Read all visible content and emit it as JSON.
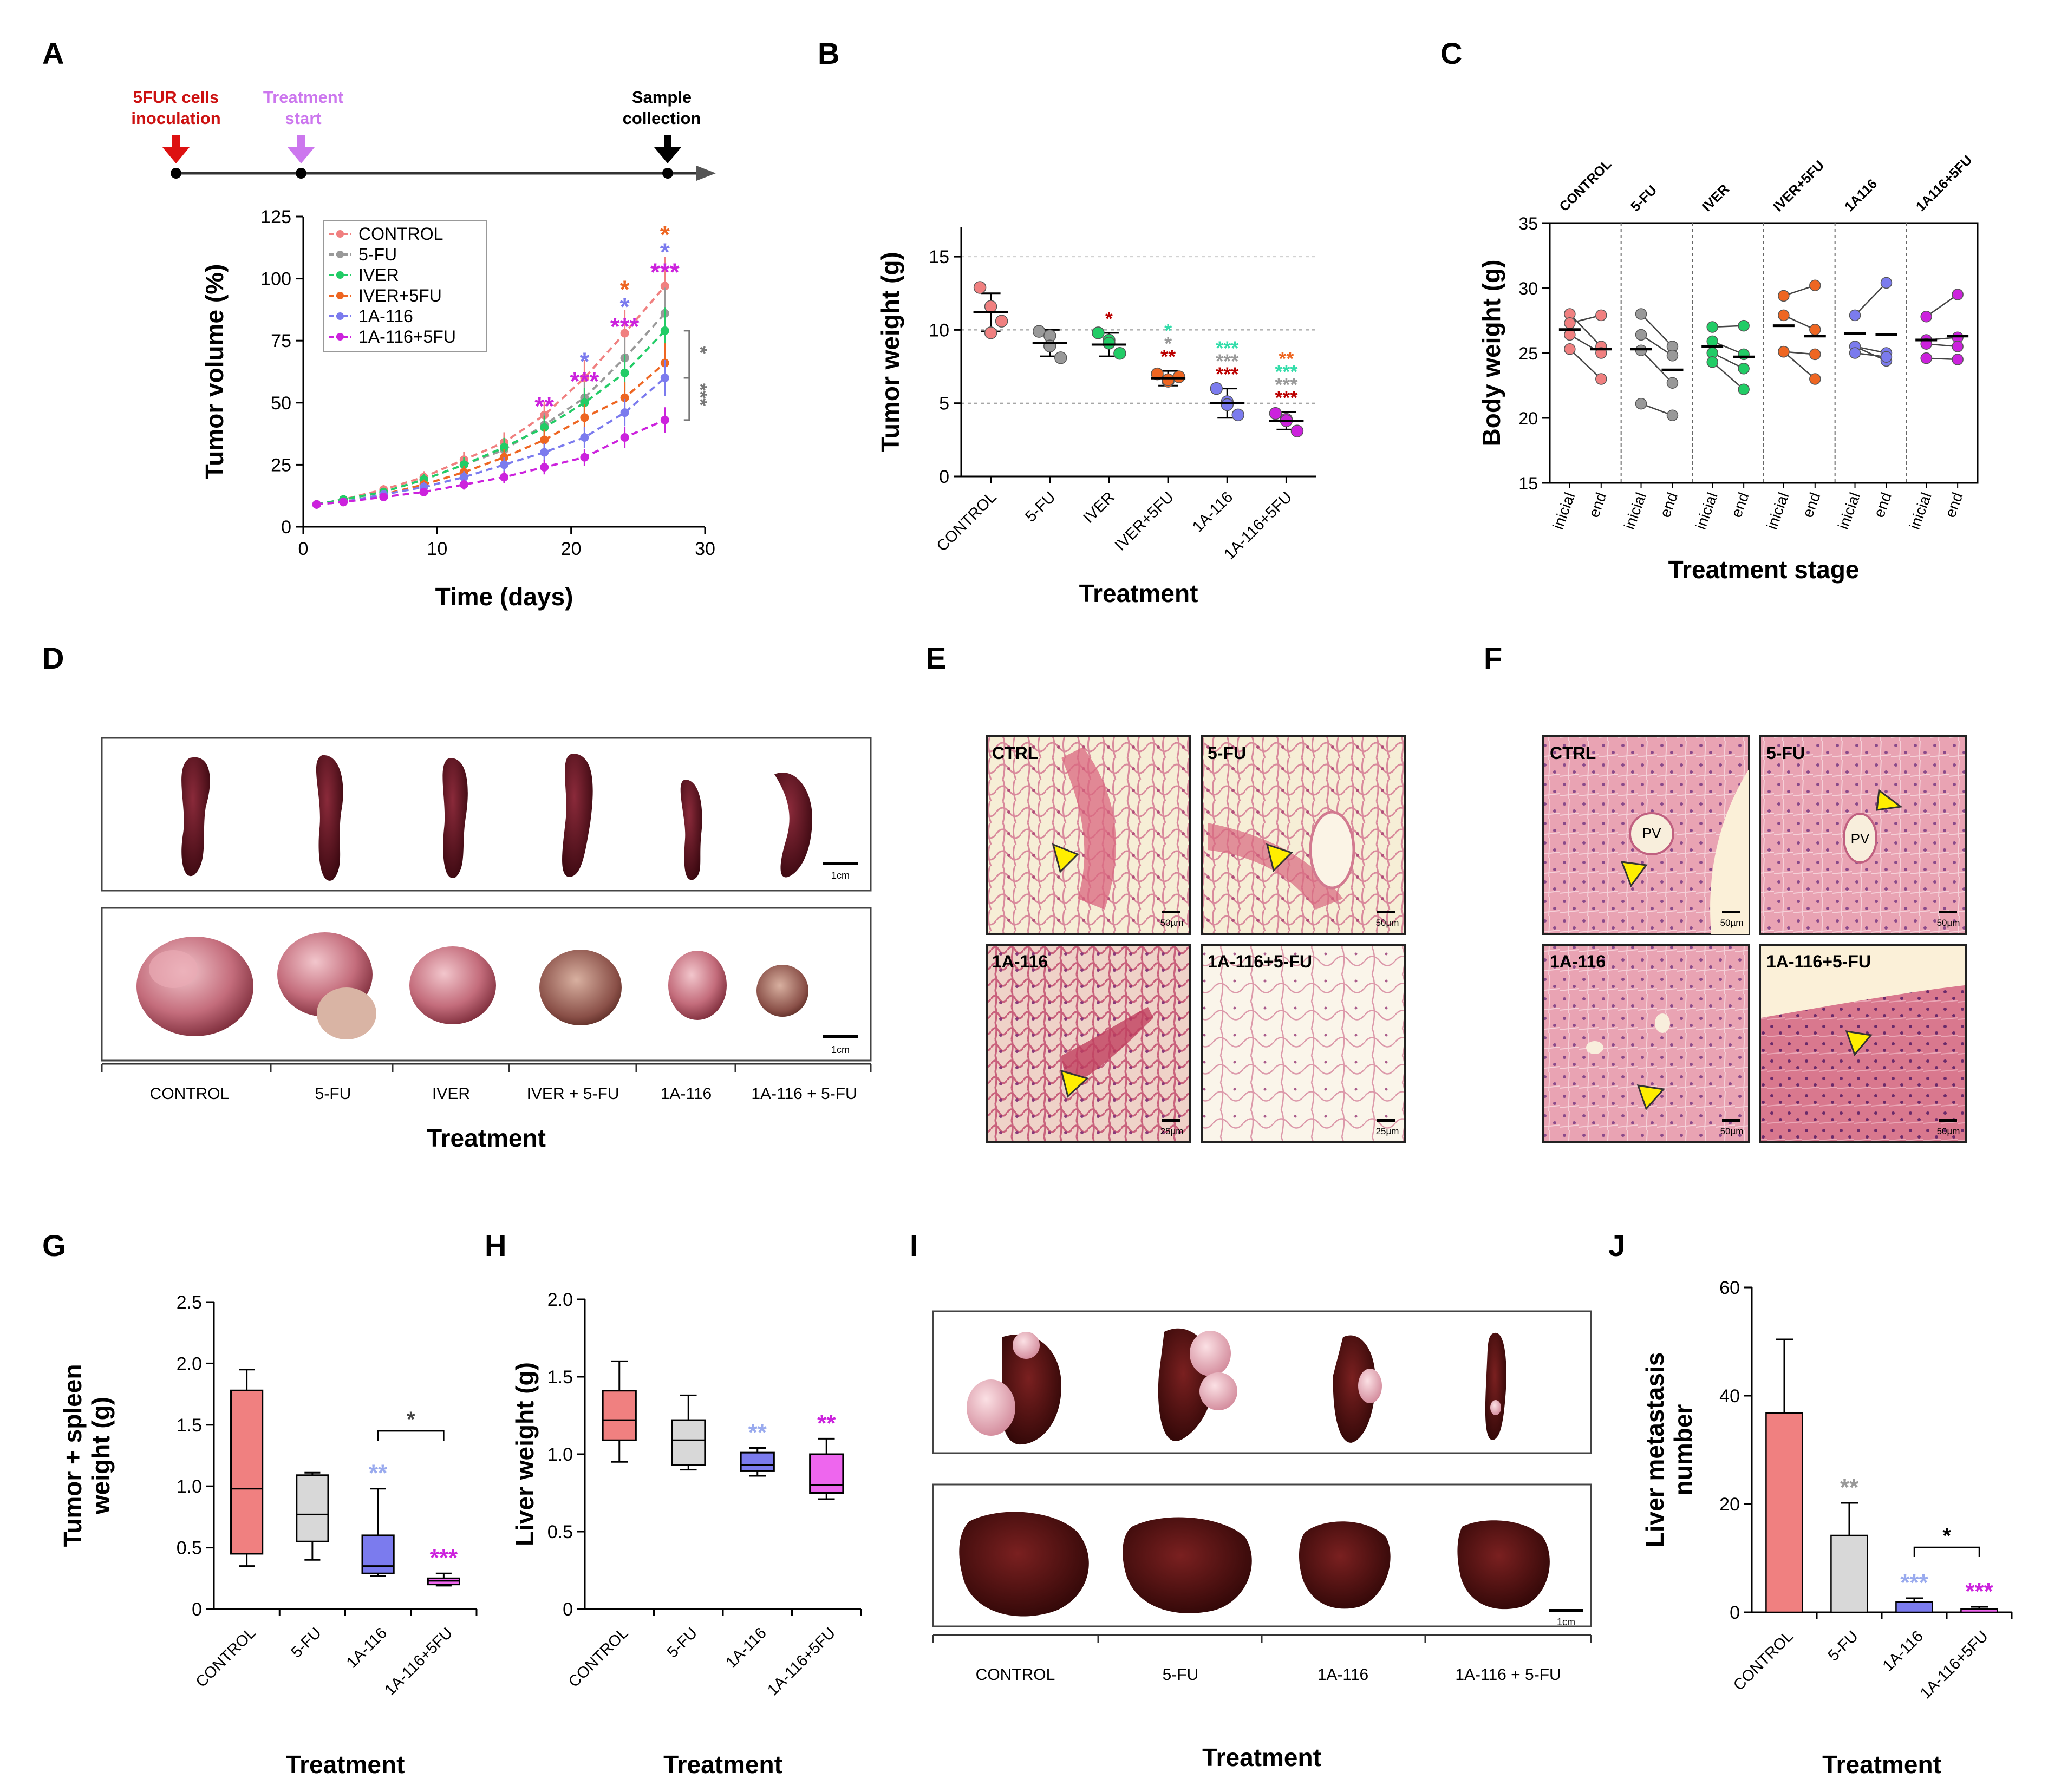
{
  "figure": {
    "panel_letters": [
      "A",
      "B",
      "C",
      "D",
      "E",
      "F",
      "G",
      "H",
      "I",
      "J"
    ]
  },
  "colors": {
    "CONTROL": "#f08080",
    "5-FU": "#999999",
    "IVER": "#22cc66",
    "IVER+5FU": "#ee6622",
    "1A-116": "#7b7bee",
    "1A-116+5FU": "#cc22dd",
    "star_teal": "#33ddaa",
    "star_red": "#bb0000",
    "star_lightblue": "#99aaee",
    "arrow_red": "#dd1111",
    "arrow_violet": "#cc77ee"
  },
  "chart_data": [
    {
      "panel": "A",
      "type": "line",
      "timeline": {
        "events": [
          {
            "label_lines": [
              "5FUR cells",
              "inoculation"
            ],
            "day": 0,
            "color": "#cc1111"
          },
          {
            "label_lines": [
              "Treatment",
              "start"
            ],
            "day": 3,
            "color": "#cc77ee"
          },
          {
            "label_lines": [
              "Sample",
              "collection"
            ],
            "day": 27,
            "color": "#000000"
          }
        ]
      },
      "xlabel": "Time (days)",
      "ylabel": "Tumor volume (%)",
      "xlim": [
        0,
        30
      ],
      "ylim": [
        0,
        125
      ],
      "xticks": [
        0,
        10,
        20,
        30
      ],
      "yticks": [
        0,
        25,
        50,
        75,
        100,
        125
      ],
      "legend_position": "top-left",
      "x": [
        1,
        3,
        6,
        9,
        12,
        15,
        18,
        21,
        24,
        27
      ],
      "series": [
        {
          "name": "CONTROL",
          "values": [
            9,
            11,
            15,
            20,
            27,
            34,
            45,
            60,
            78,
            97
          ]
        },
        {
          "name": "5-FU",
          "values": [
            9,
            11,
            14,
            19,
            25,
            31,
            41,
            52,
            68,
            86
          ]
        },
        {
          "name": "IVER",
          "values": [
            9,
            11,
            14,
            19,
            25,
            32,
            40,
            50,
            62,
            79
          ]
        },
        {
          "name": "IVER+5FU",
          "values": [
            9,
            10,
            13,
            17,
            22,
            28,
            35,
            44,
            52,
            66
          ]
        },
        {
          "name": "1A-116",
          "values": [
            9,
            10,
            13,
            16,
            20,
            25,
            30,
            36,
            46,
            60
          ]
        },
        {
          "name": "1A-116+5FU",
          "values": [
            9,
            10,
            12,
            14,
            17,
            20,
            24,
            28,
            36,
            43
          ]
        }
      ],
      "significance_markers": [
        {
          "day": 18,
          "y": 50,
          "text": "**",
          "color": "#cc22dd"
        },
        {
          "day": 21,
          "y": 68,
          "text": "*",
          "color": "#7b7bee"
        },
        {
          "day": 21,
          "y": 60,
          "text": "***",
          "color": "#cc22dd"
        },
        {
          "day": 24,
          "y": 97,
          "text": "*",
          "color": "#ee6622"
        },
        {
          "day": 24,
          "y": 90,
          "text": "*",
          "color": "#7b7bee"
        },
        {
          "day": 24,
          "y": 82,
          "text": "***",
          "color": "#cc22dd"
        },
        {
          "day": 27,
          "y": 119,
          "text": "*",
          "color": "#ee6622"
        },
        {
          "day": 27,
          "y": 112,
          "text": "*",
          "color": "#7b7bee"
        },
        {
          "day": 27,
          "y": 104,
          "text": "***",
          "color": "#cc22dd"
        }
      ],
      "brackets": [
        {
          "from": 79,
          "to": 60,
          "text": "*",
          "color": "#777777"
        },
        {
          "from": 60,
          "to": 43,
          "text": "***",
          "color": "#777777"
        }
      ]
    },
    {
      "panel": "B",
      "type": "scatter",
      "xlabel": "Treatment",
      "ylabel": "Tumor weight (g)",
      "ylim": [
        0,
        17
      ],
      "yticks": [
        0,
        5,
        10,
        15
      ],
      "categories": [
        "CONTROL",
        "5-FU",
        "IVER",
        "IVER+5FU",
        "1A-116",
        "1A-116+5FU"
      ],
      "means": [
        11.2,
        9.1,
        9.0,
        6.7,
        5.0,
        3.8
      ],
      "sd": [
        1.3,
        0.9,
        0.8,
        0.5,
        1.0,
        0.6
      ],
      "points": [
        [
          12.9,
          11.6,
          10.6,
          9.8
        ],
        [
          9.9,
          9.6,
          8.1,
          8.9
        ],
        [
          9.8,
          9.3,
          8.4,
          9.1
        ],
        [
          7.0,
          6.5,
          6.8,
          6.6
        ],
        [
          6.0,
          5.1,
          4.2,
          4.9
        ],
        [
          4.3,
          3.9,
          3.1,
          3.8
        ]
      ],
      "significance": [
        [],
        [],
        [
          {
            "text": "*",
            "color": "#bb0000"
          }
        ],
        [
          {
            "text": "**",
            "color": "#bb0000"
          },
          {
            "text": "*",
            "color": "#999999"
          },
          {
            "text": "*",
            "color": "#33ddaa"
          }
        ],
        [
          {
            "text": "***",
            "color": "#bb0000"
          },
          {
            "text": "***",
            "color": "#999999"
          },
          {
            "text": "***",
            "color": "#33ddaa"
          }
        ],
        [
          {
            "text": "***",
            "color": "#bb0000"
          },
          {
            "text": "***",
            "color": "#999999"
          },
          {
            "text": "***",
            "color": "#33ddaa"
          },
          {
            "text": "**",
            "color": "#ee6622"
          }
        ]
      ]
    },
    {
      "panel": "C",
      "type": "scatter",
      "xlabel": "Treatment stage",
      "ylabel": "Body weight (g)",
      "ylim": [
        15,
        35
      ],
      "yticks": [
        15,
        20,
        25,
        30,
        35
      ],
      "groups": [
        "CONTROL",
        "5-FU",
        "IVER",
        "IVER+5FU",
        "1A116",
        "1A116+5FU"
      ],
      "group_series": [
        "CONTROL",
        "5-FU",
        "IVER",
        "IVER+5FU",
        "1A-116",
        "1A-116+5FU"
      ],
      "stage_labels": [
        "inicial",
        "end"
      ],
      "pairs": [
        [
          [
            28.0,
            25.5
          ],
          [
            27.3,
            27.9
          ],
          [
            25.3,
            23.0
          ],
          [
            26.4,
            25.0
          ]
        ],
        [
          [
            28.0,
            25.5
          ],
          [
            26.4,
            24.8
          ],
          [
            25.2,
            22.7
          ],
          [
            21.1,
            20.2
          ]
        ],
        [
          [
            27.0,
            27.1
          ],
          [
            25.9,
            24.9
          ],
          [
            25.0,
            23.8
          ],
          [
            24.3,
            22.2
          ]
        ],
        [
          [
            29.4,
            30.2
          ],
          [
            27.9,
            26.8
          ],
          [
            25.1,
            24.9
          ],
          [
            25.1,
            23.0
          ]
        ],
        [
          [
            27.9,
            30.4
          ],
          [
            25.5,
            25.0
          ],
          [
            25.5,
            24.4
          ],
          [
            25.0,
            24.7
          ]
        ],
        [
          [
            27.8,
            29.5
          ],
          [
            26.0,
            26.2
          ],
          [
            25.7,
            25.5
          ],
          [
            24.6,
            24.5
          ]
        ]
      ],
      "means": [
        [
          26.8,
          25.3
        ],
        [
          25.3,
          23.7
        ],
        [
          25.5,
          24.7
        ],
        [
          27.1,
          26.3
        ],
        [
          26.5,
          26.4
        ],
        [
          26.0,
          26.3
        ]
      ]
    },
    {
      "panel": "G",
      "type": "box",
      "xlabel": "Treatment",
      "ylabel_lines": [
        "Tumor + spleen",
        "weight (g)"
      ],
      "ylim": [
        0,
        2.5
      ],
      "yticks": [
        0,
        0.5,
        1.0,
        1.5,
        2.0,
        2.5
      ],
      "ytick_labels": [
        "0",
        "0.5",
        "1.0",
        "1.5",
        "2.0",
        "2.5"
      ],
      "categories": [
        "CONTROL",
        "5-FU",
        "1A-116",
        "1A-116+5FU"
      ],
      "boxes": [
        {
          "min": 0.35,
          "q1": 0.45,
          "median": 0.98,
          "q3": 1.78,
          "max": 1.95
        },
        {
          "min": 0.4,
          "q1": 0.55,
          "median": 0.77,
          "q3": 1.09,
          "max": 1.11
        },
        {
          "min": 0.27,
          "q1": 0.29,
          "median": 0.35,
          "q3": 0.6,
          "max": 0.98
        },
        {
          "min": 0.19,
          "q1": 0.2,
          "median": 0.23,
          "q3": 0.25,
          "max": 0.29
        }
      ],
      "significance": [
        {
          "category": "1A-116",
          "text": "**",
          "color": "#99aaee"
        },
        {
          "category": "1A-116+5FU",
          "text": "***",
          "color": "#cc22dd"
        }
      ],
      "bracket": {
        "from": "1A-116",
        "to": "1A-116+5FU",
        "y": 1.45,
        "text": "*"
      }
    },
    {
      "panel": "H",
      "type": "box",
      "xlabel": "Treatment",
      "ylabel": "Liver weight (g)",
      "ylim": [
        0,
        2.0
      ],
      "yticks": [
        0,
        0.5,
        1.0,
        1.5,
        2.0
      ],
      "ytick_labels": [
        "0",
        "0.5",
        "1.0",
        "1.5",
        "2.0"
      ],
      "categories": [
        "CONTROL",
        "5-FU",
        "1A-116",
        "1A-116+5FU"
      ],
      "boxes": [
        {
          "min": 0.95,
          "q1": 1.09,
          "median": 1.22,
          "q3": 1.41,
          "max": 1.6
        },
        {
          "min": 0.9,
          "q1": 0.93,
          "median": 1.09,
          "q3": 1.22,
          "max": 1.38
        },
        {
          "min": 0.86,
          "q1": 0.89,
          "median": 0.93,
          "q3": 1.01,
          "max": 1.04
        },
        {
          "min": 0.71,
          "q1": 0.75,
          "median": 0.8,
          "q3": 1.0,
          "max": 1.1
        }
      ],
      "significance": [
        {
          "category": "1A-116",
          "text": "**",
          "color": "#99aaee"
        },
        {
          "category": "1A-116+5FU",
          "text": "**",
          "color": "#cc22dd"
        }
      ]
    },
    {
      "panel": "J",
      "type": "bar",
      "xlabel": "Treatment",
      "ylabel_lines": [
        "Liver metastasis",
        "number"
      ],
      "ylim": [
        0,
        60
      ],
      "yticks": [
        0,
        20,
        40,
        60
      ],
      "categories": [
        "CONTROL",
        "5-FU",
        "1A-116",
        "1A-116+5FU"
      ],
      "values": [
        36.8,
        14.2,
        1.9,
        0.6
      ],
      "errors": [
        13.6,
        6.0,
        0.7,
        0.4
      ],
      "significance": [
        {
          "category": "5-FU",
          "text": "**",
          "color": "#999999"
        },
        {
          "category": "1A-116",
          "text": "***",
          "color": "#99aaee"
        },
        {
          "category": "1A-116+5FU",
          "text": "***",
          "color": "#cc22dd"
        }
      ],
      "bracket": {
        "from": "1A-116",
        "to": "1A-116+5FU",
        "y": 12,
        "text": "*"
      }
    }
  ],
  "panel_D": {
    "group_labels": [
      "CONTROL",
      "5-FU",
      "IVER",
      "IVER + 5-FU",
      "1A-116",
      "1A-116 + 5-FU"
    ],
    "scale_bar": "1cm",
    "xlabel": "Treatment"
  },
  "panel_E": {
    "tiles": [
      {
        "label": "CTRL",
        "scale": "50µm"
      },
      {
        "label": "5-FU",
        "scale": "50µm"
      },
      {
        "label": "1A-116",
        "scale": "25µm"
      },
      {
        "label": "1A-116+5-FU",
        "scale": "25µm"
      }
    ]
  },
  "panel_F": {
    "tiles": [
      {
        "label": "CTRL",
        "scale": "50µm",
        "tag": "PV"
      },
      {
        "label": "5-FU",
        "scale": "50µm",
        "tag": "PV"
      },
      {
        "label": "1A-116",
        "scale": "50µm"
      },
      {
        "label": "1A-116+5-FU",
        "scale": "50µm"
      }
    ]
  },
  "panel_I": {
    "group_labels": [
      "CONTROL",
      "5-FU",
      "1A-116",
      "1A-116 + 5-FU"
    ],
    "scale_bar": "1cm",
    "xlabel": "Treatment"
  }
}
